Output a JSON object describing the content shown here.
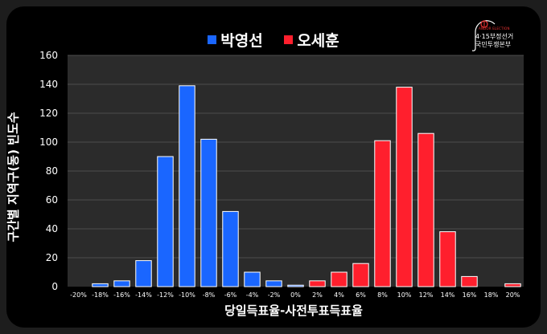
{
  "logo": {
    "small": "ANDOR ELECTION",
    "line1": "4·15부정선거",
    "line2": "국민투쟁본부"
  },
  "legend": [
    {
      "name": "박영선",
      "color": "#1a66ff"
    },
    {
      "name": "오세훈",
      "color": "#ff1f2d"
    }
  ],
  "chart_data": {
    "type": "bar",
    "xlabel": "당일득표율-사전투표득표율",
    "ylabel": "구간별 지역구(동) 빈도수",
    "ylim": [
      0,
      160
    ],
    "yticks": [
      0,
      20,
      40,
      60,
      80,
      100,
      120,
      140,
      160
    ],
    "x_ticks": [
      "-20%",
      "-18%",
      "-16%",
      "-14%",
      "-12%",
      "-10%",
      "-8%",
      "-6%",
      "-4%",
      "-2%",
      "0%",
      "2%",
      "4%",
      "6%",
      "8%",
      "10%",
      "12%",
      "14%",
      "16%",
      "18%",
      "20%"
    ],
    "grid": true,
    "legend_position": "top-center",
    "series": [
      {
        "name": "박영선",
        "color": "#1a66ff",
        "x": [
          "-18%",
          "-16%",
          "-14%",
          "-12%",
          "-10%",
          "-8%",
          "-6%",
          "-4%",
          "-2%",
          "0%"
        ],
        "values": [
          2,
          4,
          18,
          90,
          139,
          102,
          52,
          10,
          4,
          1
        ]
      },
      {
        "name": "오세훈",
        "color": "#ff1f2d",
        "x": [
          "2%",
          "4%",
          "6%",
          "8%",
          "10%",
          "12%",
          "14%",
          "16%",
          "20%"
        ],
        "values": [
          4,
          10,
          16,
          101,
          138,
          106,
          38,
          7,
          2
        ]
      }
    ]
  }
}
